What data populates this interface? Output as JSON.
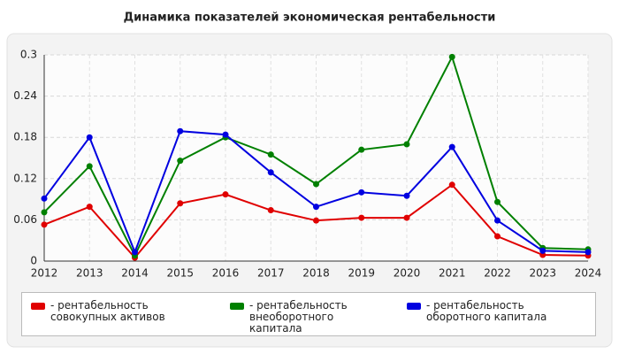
{
  "chart_data": {
    "type": "line",
    "title": "Динамика показателей экономическая рентабельности",
    "categories": [
      "2012",
      "2013",
      "2014",
      "2015",
      "2016",
      "2017",
      "2018",
      "2019",
      "2020",
      "2021",
      "2022",
      "2023",
      "2024"
    ],
    "series": [
      {
        "name": "- рентабельность совокупных активов",
        "color": "#e00000",
        "values": [
          0.053,
          0.079,
          0.005,
          0.084,
          0.097,
          0.074,
          0.059,
          0.063,
          0.063,
          0.111,
          0.036,
          0.009,
          0.008
        ]
      },
      {
        "name": "- рентабельность внеоборотного капитала",
        "color": "#008000",
        "values": [
          0.071,
          0.138,
          0.008,
          0.146,
          0.18,
          0.155,
          0.112,
          0.162,
          0.17,
          0.297,
          0.086,
          0.019,
          0.017
        ]
      },
      {
        "name": "- рентабельность оборотного капитала",
        "color": "#0000e0",
        "values": [
          0.091,
          0.18,
          0.013,
          0.189,
          0.184,
          0.129,
          0.079,
          0.1,
          0.095,
          0.166,
          0.059,
          0.015,
          0.013
        ]
      }
    ],
    "ylim": [
      0,
      0.3
    ],
    "yticks": [
      0,
      0.06,
      0.12,
      0.18,
      0.24,
      0.3
    ],
    "grid": true
  }
}
